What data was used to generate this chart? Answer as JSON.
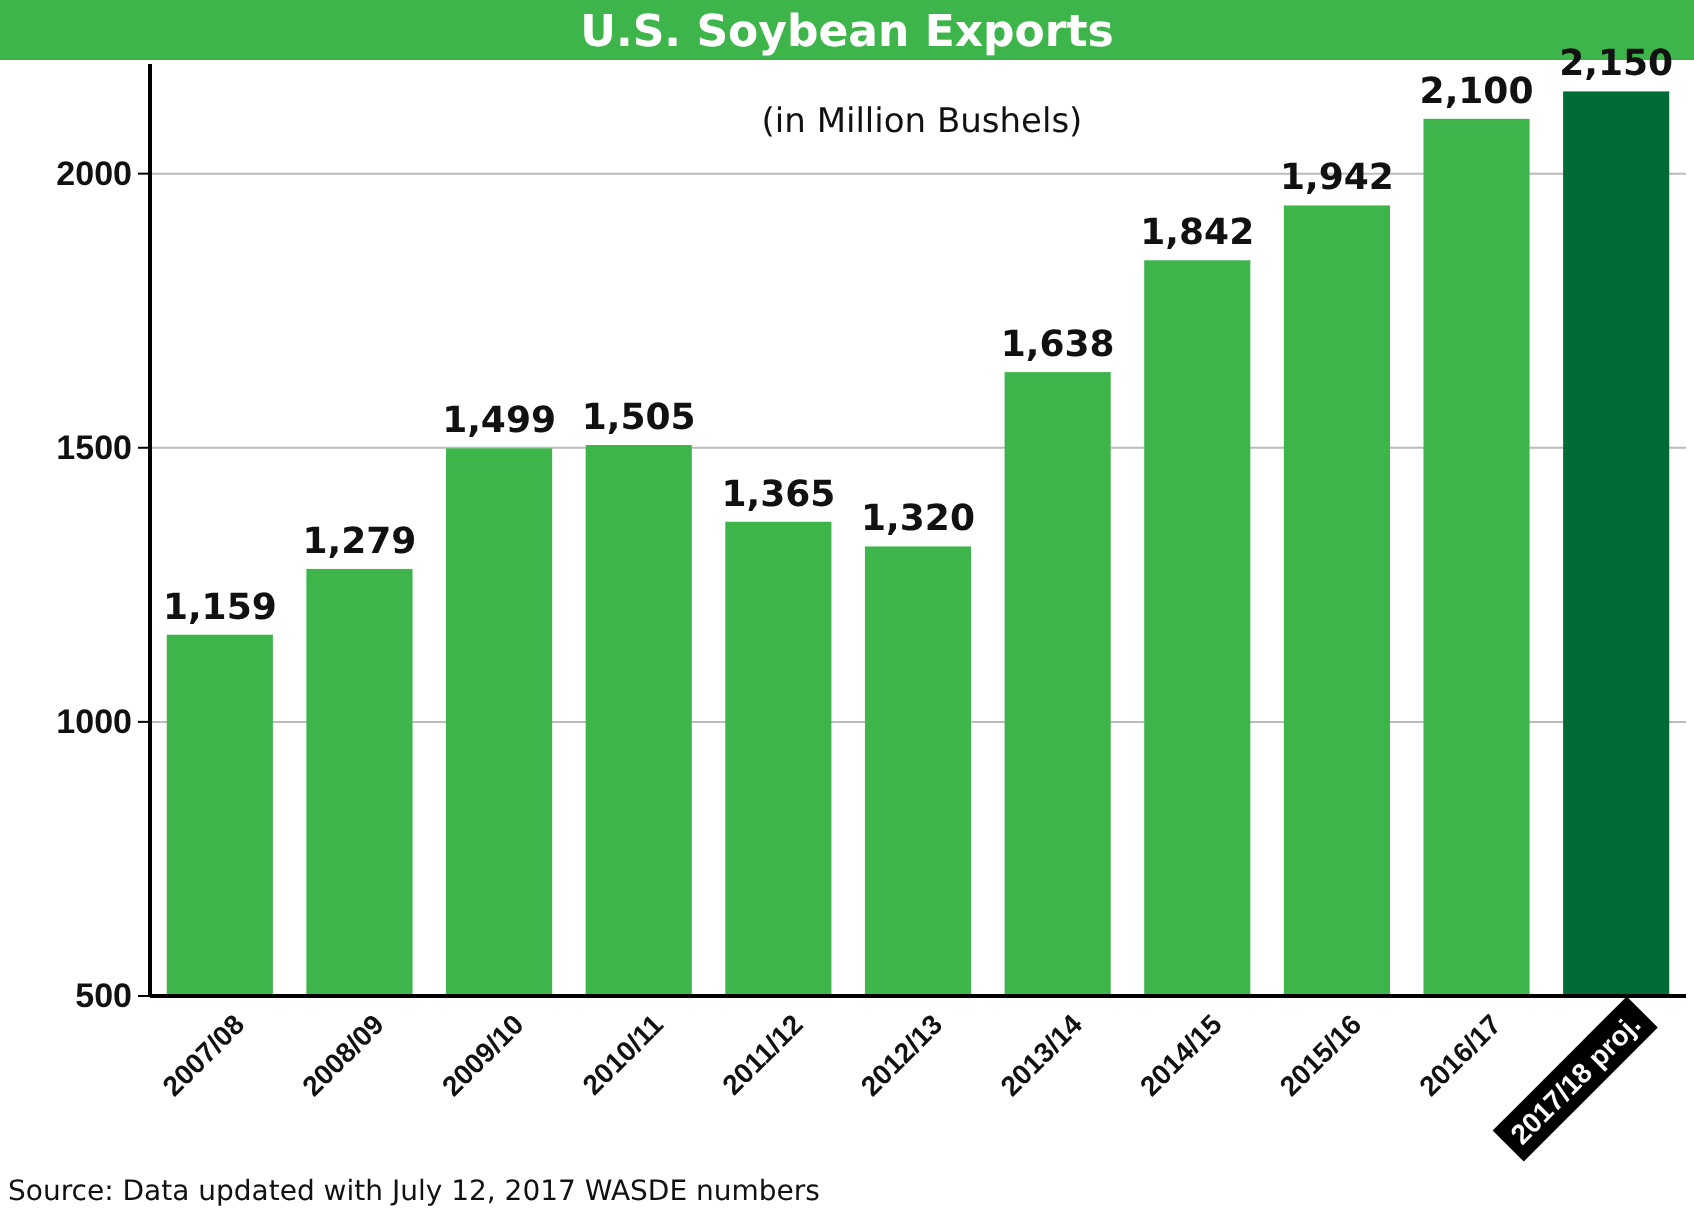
{
  "chart_data": {
    "type": "bar",
    "title": "U.S. Soybean Exports",
    "subtitle": "(in Million Bushels)",
    "categories": [
      "2007/08",
      "2008/09",
      "2009/10",
      "2010/11",
      "2011/12",
      "2012/13",
      "2013/14",
      "2014/15",
      "2015/16",
      "2016/17",
      "2017/18 proj."
    ],
    "values": [
      1159,
      1279,
      1499,
      1505,
      1365,
      1320,
      1638,
      1842,
      1942,
      2100,
      2150
    ],
    "colors": [
      "#3db54a",
      "#3db54a",
      "#3db54a",
      "#3db54a",
      "#3db54a",
      "#3db54a",
      "#3db54a",
      "#3db54a",
      "#3db54a",
      "#3db54a",
      "#006b35"
    ],
    "value_labels": [
      "1,159",
      "1,279",
      "1,499",
      "1,505",
      "1,365",
      "1,320",
      "1,638",
      "1,842",
      "1,942",
      "2,100",
      "2,150"
    ],
    "ylim": [
      500,
      2200
    ],
    "yticks": [
      500,
      1000,
      1500,
      2000
    ],
    "grid": "y",
    "annotations": [
      "Source: Data updated with July 12, 2017 WASDE numbers"
    ]
  }
}
